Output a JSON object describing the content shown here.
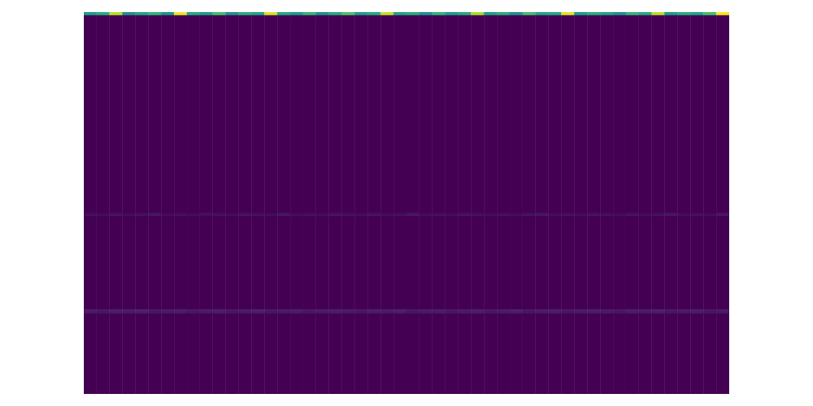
{
  "chart_data": {
    "type": "heatmap",
    "tick_labels": false,
    "xlim": [
      0,
      50
    ],
    "ylim": [
      0,
      118
    ],
    "y_bins": [
      0,
      1,
      62,
      63,
      92,
      93,
      118
    ],
    "color_range": [
      0,
      1
    ],
    "cells": [
      [
        0.55,
        0.62,
        0.9,
        0.5,
        0.58,
        0.66,
        0.52,
        0.98,
        0.6,
        0.55,
        0.7,
        0.5,
        0.62,
        0.58,
        0.95,
        0.6,
        0.54,
        0.66,
        0.5,
        0.6,
        0.72,
        0.55,
        0.6,
        0.92,
        0.58,
        0.62,
        0.5,
        0.66,
        0.55,
        0.6,
        0.88,
        0.56,
        0.62,
        0.5,
        0.7,
        0.58,
        0.6,
        0.96,
        0.55,
        0.62,
        0.58,
        0.5,
        0.66,
        0.6,
        0.9,
        0.55,
        0.62,
        0.58,
        0.7,
        1.0
      ],
      [
        0,
        0,
        0,
        0,
        0,
        0,
        0,
        0,
        0,
        0,
        0,
        0,
        0,
        0,
        0,
        0,
        0,
        0,
        0,
        0,
        0,
        0,
        0,
        0,
        0,
        0,
        0,
        0,
        0,
        0,
        0,
        0,
        0,
        0,
        0,
        0,
        0,
        0,
        0,
        0,
        0,
        0,
        0,
        0,
        0,
        0,
        0,
        0,
        0,
        0
      ],
      [
        0.03,
        0.02,
        0.04,
        0.02,
        0.03,
        0.05,
        0.02,
        0.03,
        0.02,
        0.04,
        0.03,
        0.02,
        0.04,
        0.03,
        0.02,
        0.05,
        0.02,
        0.03,
        0.02,
        0.04,
        0.03,
        0.02,
        0.04,
        0.02,
        0.03,
        0.05,
        0.02,
        0.03,
        0.02,
        0.04,
        0.03,
        0.02,
        0.03,
        0.02,
        0.04,
        0.05,
        0.02,
        0.03,
        0.02,
        0.04,
        0.03,
        0.02,
        0.04,
        0.02,
        0.03,
        0.05,
        0.02,
        0.03,
        0.02,
        0.05
      ],
      [
        0,
        0,
        0,
        0,
        0,
        0,
        0,
        0,
        0,
        0,
        0,
        0,
        0,
        0,
        0,
        0,
        0,
        0,
        0,
        0,
        0,
        0,
        0,
        0,
        0,
        0,
        0,
        0,
        0,
        0,
        0,
        0,
        0,
        0,
        0,
        0,
        0,
        0,
        0,
        0,
        0,
        0,
        0,
        0,
        0,
        0,
        0,
        0,
        0,
        0
      ],
      [
        0.07,
        0.06,
        0.08,
        0.07,
        0.09,
        0.06,
        0.07,
        0.08,
        0.06,
        0.07,
        0.08,
        0.06,
        0.07,
        0.09,
        0.06,
        0.07,
        0.08,
        0.06,
        0.07,
        0.08,
        0.07,
        0.06,
        0.08,
        0.07,
        0.09,
        0.06,
        0.07,
        0.08,
        0.06,
        0.07,
        0.08,
        0.06,
        0.07,
        0.09,
        0.06,
        0.07,
        0.08,
        0.06,
        0.07,
        0.08,
        0.07,
        0.06,
        0.08,
        0.07,
        0.09,
        0.06,
        0.07,
        0.08,
        0.06,
        0.07
      ],
      [
        0,
        0,
        0,
        0,
        0,
        0,
        0,
        0,
        0,
        0,
        0,
        0,
        0,
        0,
        0,
        0,
        0,
        0,
        0,
        0,
        0,
        0,
        0,
        0,
        0,
        0,
        0,
        0,
        0,
        0,
        0,
        0,
        0,
        0,
        0,
        0,
        0,
        0,
        0,
        0,
        0,
        0,
        0,
        0,
        0,
        0,
        0,
        0,
        0,
        0
      ]
    ]
  }
}
